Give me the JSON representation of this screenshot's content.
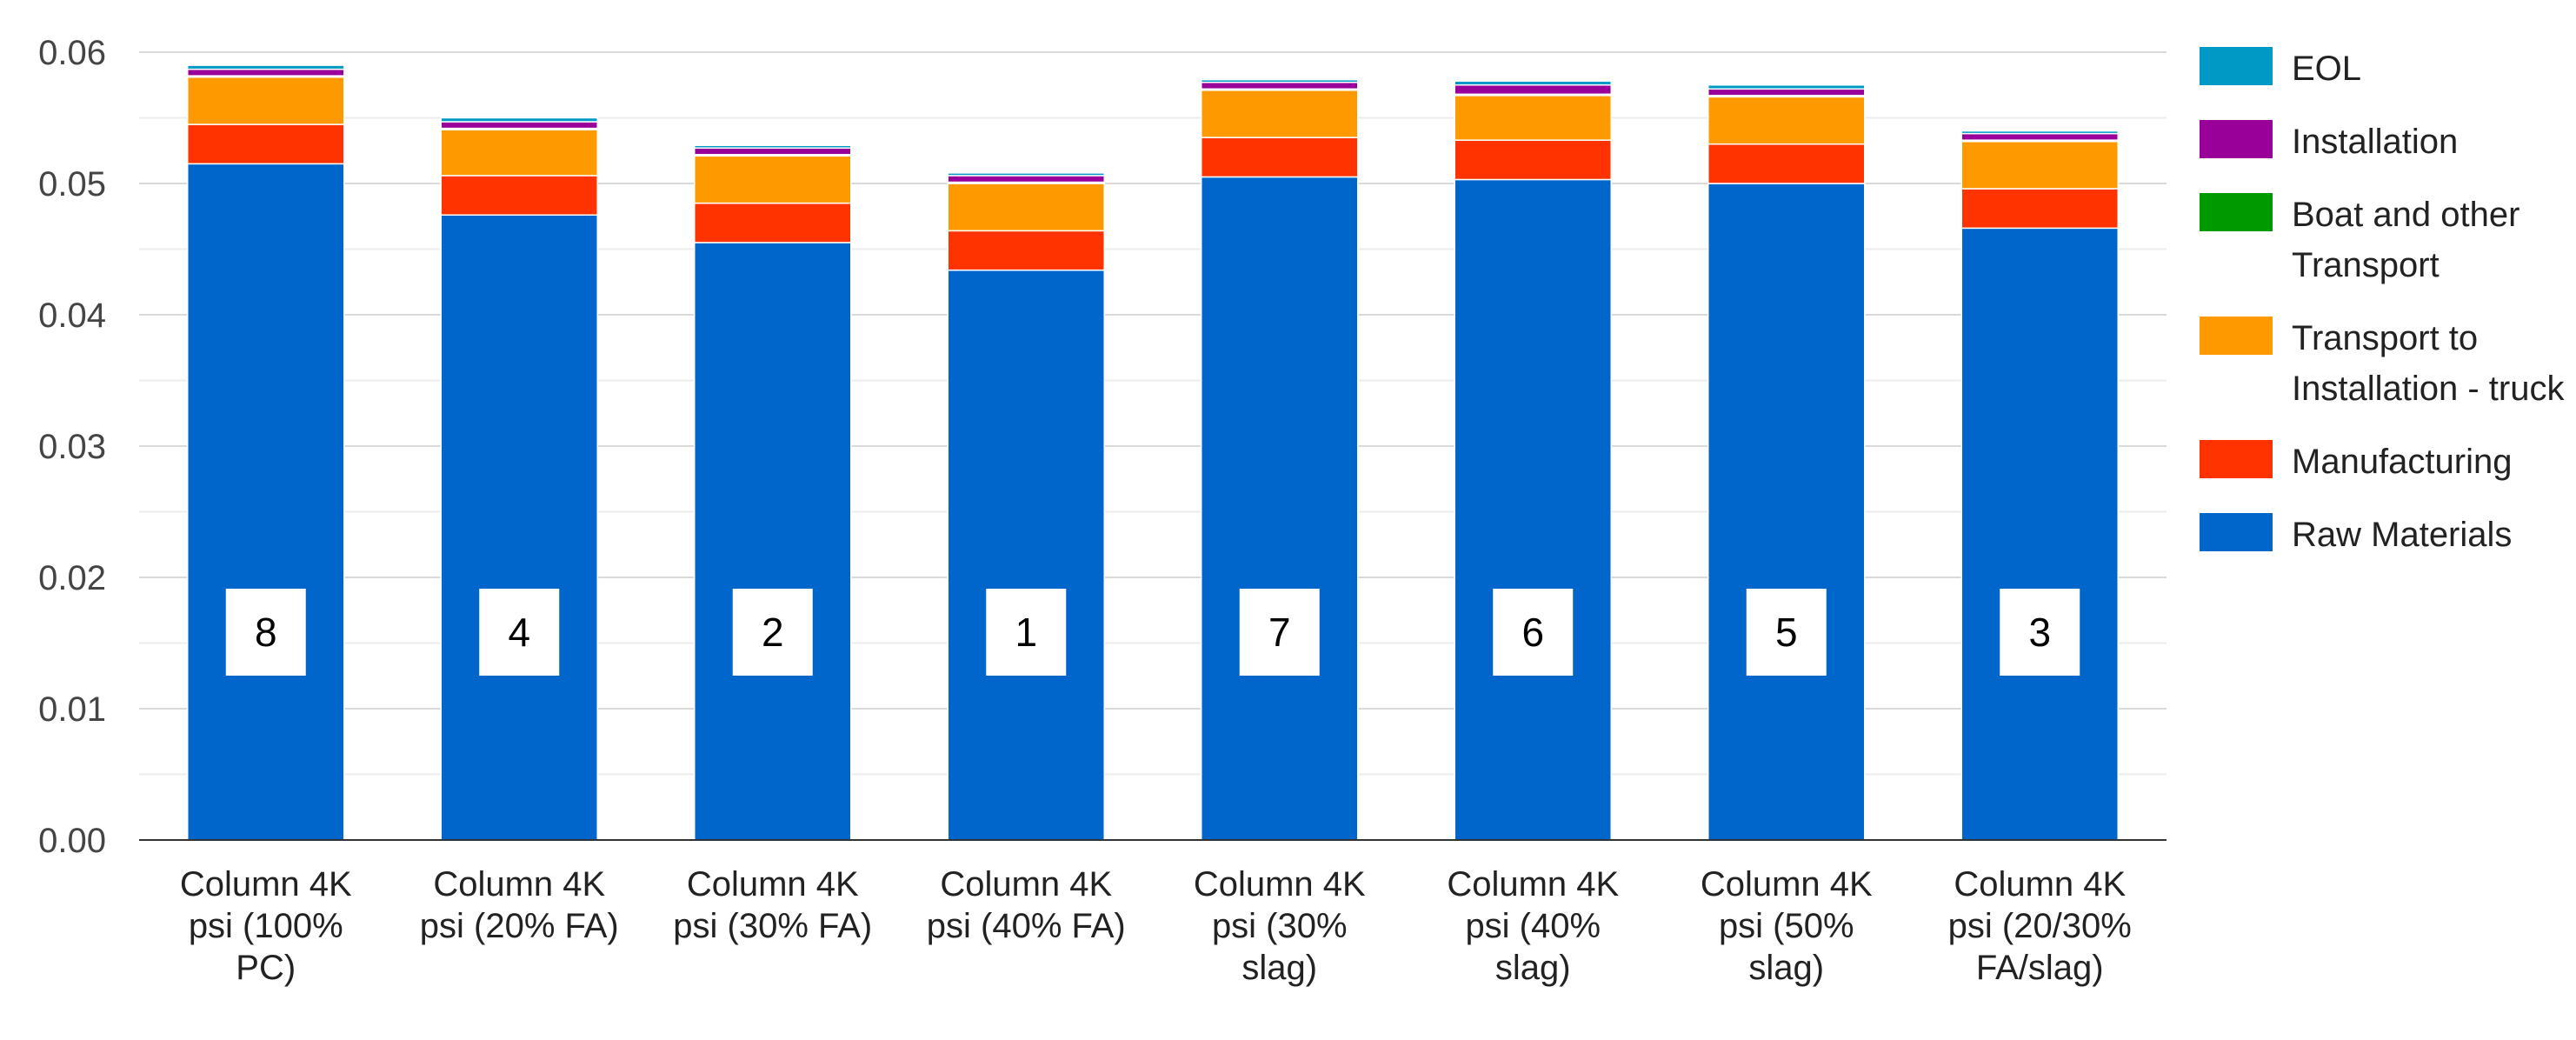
{
  "chart_data": {
    "type": "bar",
    "stacked": true,
    "title": "",
    "xlabel": "",
    "ylabel": "",
    "ylim": [
      0,
      0.06
    ],
    "y_ticks": [
      "0.00",
      "0.01",
      "0.02",
      "0.03",
      "0.04",
      "0.05",
      "0.06"
    ],
    "grid": true,
    "legend_position": "right",
    "categories": [
      [
        "Column 4K",
        "psi (100%",
        "PC)"
      ],
      [
        "Column 4K",
        "psi (20% FA)"
      ],
      [
        "Column 4K",
        "psi (30% FA)"
      ],
      [
        "Column 4K",
        "psi (40% FA)"
      ],
      [
        "Column 4K",
        "psi (30%",
        "slag)"
      ],
      [
        "Column 4K",
        "psi (40%",
        "slag)"
      ],
      [
        "Column 4K",
        "psi (50%",
        "slag)"
      ],
      [
        "Column 4K",
        "psi (20/30%",
        "FA/slag)"
      ]
    ],
    "rank_labels": [
      "8",
      "4",
      "2",
      "1",
      "7",
      "6",
      "5",
      "3"
    ],
    "series": [
      {
        "name": "Raw Materials",
        "color": "#0066CC",
        "values": [
          0.0515,
          0.0476,
          0.0455,
          0.0434,
          0.0505,
          0.0503,
          0.05,
          0.0466
        ]
      },
      {
        "name": "Manufacturing",
        "color": "#FF3300",
        "values": [
          0.003,
          0.003,
          0.003,
          0.003,
          0.003,
          0.003,
          0.003,
          0.003
        ]
      },
      {
        "name": "Transport to Installation - truck",
        "color": "#FF9900",
        "values": [
          0.0036,
          0.0035,
          0.0036,
          0.0036,
          0.0036,
          0.0034,
          0.0036,
          0.0036
        ]
      },
      {
        "name": "Boat and other Transport",
        "color": "#009900",
        "values": [
          0.0001,
          0.0001,
          0.0001,
          0.0001,
          0.0001,
          0.0001,
          0.0001,
          0.0001
        ]
      },
      {
        "name": "Installation",
        "color": "#990099",
        "values": [
          0.0005,
          0.0005,
          0.0005,
          0.0005,
          0.0005,
          0.0007,
          0.0005,
          0.0005
        ]
      },
      {
        "name": "EOL",
        "color": "#0099C6",
        "values": [
          0.0003,
          0.0003,
          0.0002,
          0.0002,
          0.0002,
          0.0003,
          0.0003,
          0.0002
        ]
      }
    ],
    "legend": [
      {
        "label": "EOL",
        "color": "#0099C6"
      },
      {
        "label": "Installation",
        "color": "#990099"
      },
      {
        "label": "Boat and other Transport",
        "color": "#009900"
      },
      {
        "label": "Transport to Installation - truck",
        "color": "#FF9900"
      },
      {
        "label": "Manufacturing",
        "color": "#FF3300"
      },
      {
        "label": "Raw Materials",
        "color": "#0066CC"
      }
    ]
  }
}
